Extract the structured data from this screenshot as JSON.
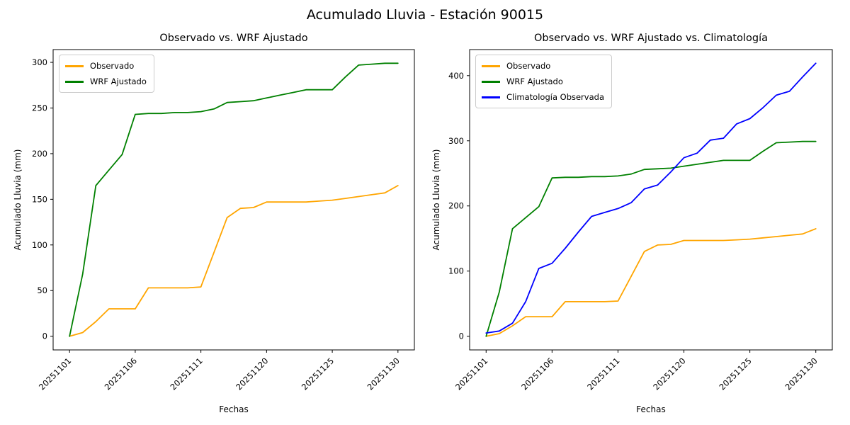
{
  "figure": {
    "title": "Acumulado Lluvia - Estación 90015",
    "background": "#ffffff"
  },
  "chart_data": [
    {
      "type": "line",
      "title": "Observado vs. WRF Ajustado",
      "xlabel": "Fechas",
      "ylabel": "Acumulado Lluvia (mm)",
      "x_tick_labels": [
        "20251101",
        "20251106",
        "20251111",
        "20251120",
        "20251125",
        "20251130"
      ],
      "x_tick_indices": [
        0,
        5,
        10,
        15,
        20,
        25
      ],
      "n_points": 26,
      "ylim": [
        -15,
        314
      ],
      "yticks": [
        0,
        50,
        100,
        150,
        200,
        250,
        300
      ],
      "grid": false,
      "legend_position": "upper-left",
      "series": [
        {
          "name": "Observado",
          "color": "#FFA500",
          "values": [
            0,
            4,
            16,
            30,
            30,
            30,
            53,
            53,
            53,
            53,
            54,
            92,
            130,
            140,
            141,
            147,
            147,
            147,
            147,
            148,
            149,
            151,
            153,
            155,
            157,
            165
          ]
        },
        {
          "name": "WRF Ajustado",
          "color": "#008000",
          "values": [
            0,
            68,
            165,
            182,
            199,
            243,
            244,
            244,
            245,
            245,
            246,
            249,
            256,
            257,
            258,
            261,
            264,
            267,
            270,
            270,
            270,
            284,
            297,
            298,
            299,
            299
          ]
        }
      ]
    },
    {
      "type": "line",
      "title": "Observado vs. WRF Ajustado vs. Climatología",
      "xlabel": "Fechas",
      "ylabel": "Acumulado Lluvia (mm)",
      "x_tick_labels": [
        "20251101",
        "20251106",
        "20251111",
        "20251120",
        "20251125",
        "20251130"
      ],
      "x_tick_indices": [
        0,
        5,
        10,
        15,
        20,
        25
      ],
      "n_points": 26,
      "ylim": [
        -21,
        440
      ],
      "yticks": [
        0,
        100,
        200,
        300,
        400
      ],
      "grid": false,
      "legend_position": "upper-left",
      "series": [
        {
          "name": "Observado",
          "color": "#FFA500",
          "values": [
            0,
            4,
            16,
            30,
            30,
            30,
            53,
            53,
            53,
            53,
            54,
            92,
            130,
            140,
            141,
            147,
            147,
            147,
            147,
            148,
            149,
            151,
            153,
            155,
            157,
            165
          ]
        },
        {
          "name": "WRF Ajustado",
          "color": "#008000",
          "values": [
            0,
            68,
            165,
            182,
            199,
            243,
            244,
            244,
            245,
            245,
            246,
            249,
            256,
            257,
            258,
            261,
            264,
            267,
            270,
            270,
            270,
            284,
            297,
            298,
            299,
            299
          ]
        },
        {
          "name": "Climatología Observada",
          "color": "#0000FF",
          "values": [
            5,
            8,
            20,
            53,
            104,
            112,
            135,
            160,
            184,
            190,
            196,
            205,
            226,
            232,
            252,
            274,
            281,
            301,
            304,
            326,
            334,
            351,
            370,
            376,
            398,
            419
          ]
        }
      ]
    }
  ],
  "style": {
    "axis_color": "#000000",
    "tick_font_size": 11.5,
    "line_width": 1.8
  }
}
